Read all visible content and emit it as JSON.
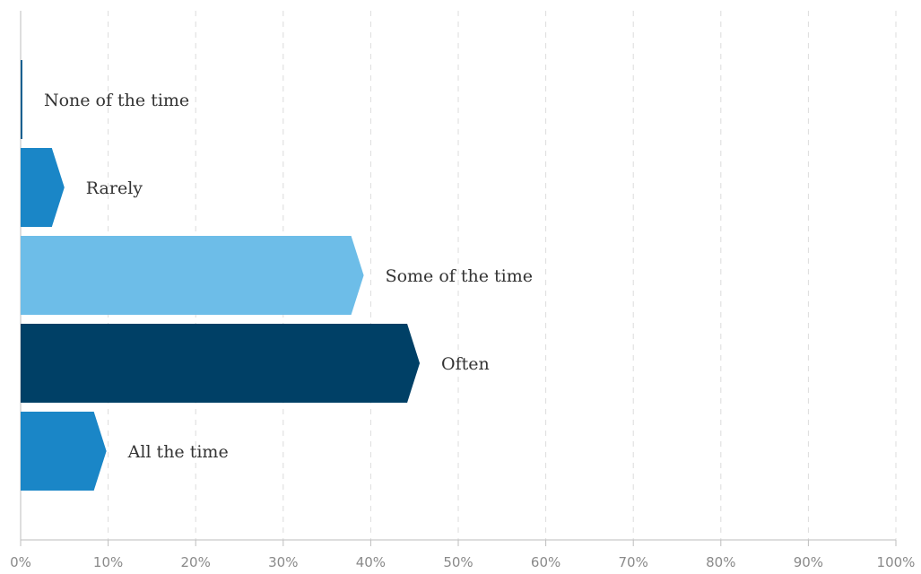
{
  "chart_data": {
    "type": "bar",
    "orientation": "horizontal",
    "categories": [
      "None of the time",
      "Rarely",
      "Some of the time",
      "Often",
      "All the time"
    ],
    "values": [
      0.2,
      5.0,
      39.2,
      45.6,
      9.8
    ],
    "colors": [
      "#0b5c8e",
      "#1a86c7",
      "#6dbde8",
      "#004066",
      "#1a86c7"
    ],
    "title": "",
    "xlabel": "",
    "ylabel": "",
    "xlim": [
      0,
      100
    ],
    "x_ticks": [
      "0%",
      "10%",
      "20%",
      "30%",
      "40%",
      "50%",
      "60%",
      "70%",
      "80%",
      "90%",
      "100%"
    ],
    "grid": "vertical dashed",
    "legend": "none"
  }
}
